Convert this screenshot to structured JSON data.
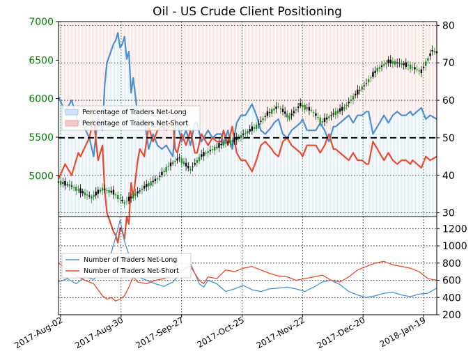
{
  "chart_data": [
    {
      "type": "candlestick+line",
      "title": "Oil - US Crude Client Positioning",
      "x_ticks": [
        "2017-Aug-02",
        "2017-Aug-30",
        "2017-Sep-27",
        "2017-Oct-25",
        "2017-Nov-22",
        "2017-Dec-20",
        "2018-Jan-19"
      ],
      "left_axis": {
        "ticks": [
          5000,
          5500,
          6000,
          6500,
          7000
        ],
        "ylim": [
          4470,
          7000
        ],
        "color": "#008000"
      },
      "right_axis": {
        "ticks": [
          30,
          40,
          50,
          60,
          70,
          80
        ],
        "ylim": [
          29,
          81
        ],
        "color": "#000000"
      },
      "reference_line": {
        "value": 50,
        "axis": "right",
        "style": "dashed"
      },
      "legend": {
        "placement": "left",
        "entries": [
          "Percentage of Traders Net-Long",
          "Percentage of Traders Net-Short"
        ]
      },
      "grid": true,
      "series": [
        {
          "name": "Percentage of Traders Net-Long",
          "axis": "right",
          "color": "#4a90d0",
          "x": [
            0,
            3,
            6,
            9,
            10,
            14,
            16,
            18,
            20,
            21,
            22,
            25,
            26,
            27,
            28,
            29,
            30,
            31,
            32,
            33,
            34,
            36,
            37,
            39,
            41,
            43,
            45,
            47,
            49,
            52,
            53,
            54,
            56,
            58,
            60,
            62,
            63,
            65,
            68,
            70,
            72,
            74,
            75,
            77,
            79,
            81,
            83,
            85,
            87,
            88,
            90,
            92,
            94,
            97,
            98,
            100,
            102,
            104,
            106,
            108,
            110,
            111,
            113,
            115,
            117,
            119,
            121,
            123,
            125,
            126,
            128,
            130,
            132,
            134,
            136,
            138,
            140,
            141,
            143,
            146,
            148,
            150,
            152,
            154,
            156,
            158,
            160,
            161,
            163,
            165,
            167,
            169,
            172
          ],
          "values": [
            61,
            57,
            60,
            54,
            55,
            50,
            45,
            56,
            52,
            64,
            70,
            75,
            76,
            78,
            74,
            75,
            77,
            71,
            73,
            62,
            66,
            56,
            53,
            55,
            47,
            51,
            48,
            47,
            48,
            45,
            53,
            54,
            49,
            52,
            48,
            54,
            54,
            49,
            52,
            50,
            51,
            51,
            48,
            52,
            47,
            54,
            56,
            56,
            58,
            59,
            56,
            52,
            51,
            53,
            54,
            55,
            51,
            50,
            52,
            53,
            54,
            55,
            52,
            52,
            52,
            54,
            52,
            49,
            53,
            53,
            54,
            55,
            56,
            54,
            56,
            56,
            57,
            57,
            51,
            54,
            56,
            54,
            56,
            57,
            56,
            56,
            57,
            56,
            57,
            58,
            55,
            56,
            55
          ]
        },
        {
          "name": "Percentage of Traders Net-Short",
          "axis": "right",
          "color": "#e84a2f",
          "x": [
            0,
            3,
            6,
            9,
            10,
            14,
            16,
            18,
            20,
            21,
            22,
            25,
            26,
            27,
            28,
            29,
            30,
            31,
            32,
            33,
            34,
            36,
            37,
            39,
            41,
            43,
            45,
            47,
            49,
            52,
            53,
            54,
            56,
            58,
            60,
            62,
            63,
            65,
            68,
            70,
            72,
            74,
            75,
            77,
            79,
            81,
            83,
            85,
            87,
            88,
            90,
            92,
            94,
            97,
            98,
            100,
            102,
            104,
            106,
            108,
            110,
            111,
            113,
            115,
            117,
            119,
            121,
            123,
            125,
            126,
            128,
            130,
            132,
            134,
            136,
            138,
            140,
            141,
            143,
            146,
            148,
            150,
            152,
            154,
            156,
            158,
            160,
            161,
            163,
            165,
            167,
            169,
            172
          ],
          "values": [
            39,
            43,
            40,
            46,
            45,
            50,
            55,
            44,
            48,
            36,
            30,
            25,
            24,
            22,
            26,
            25,
            23,
            29,
            27,
            38,
            34,
            44,
            47,
            45,
            53,
            49,
            52,
            53,
            52,
            55,
            47,
            46,
            51,
            48,
            52,
            46,
            46,
            51,
            48,
            50,
            49,
            49,
            52,
            48,
            53,
            46,
            44,
            44,
            42,
            41,
            44,
            48,
            49,
            47,
            46,
            45,
            49,
            50,
            48,
            47,
            46,
            45,
            48,
            48,
            48,
            46,
            48,
            51,
            47,
            47,
            46,
            45,
            44,
            46,
            44,
            44,
            43,
            43,
            49,
            46,
            44,
            46,
            44,
            43,
            44,
            44,
            43,
            44,
            43,
            42,
            45,
            44,
            45
          ]
        },
        {
          "name": "US Crude Price (candlesticks)",
          "axis": "left",
          "color": "#000000",
          "x": [
            0,
            5,
            10,
            15,
            20,
            25,
            30,
            35,
            40,
            45,
            50,
            55,
            60,
            65,
            70,
            75,
            80,
            85,
            90,
            95,
            100,
            105,
            110,
            115,
            120,
            125,
            130,
            135,
            140,
            145,
            150,
            155,
            160,
            165,
            170,
            172
          ],
          "values": [
            4920,
            4880,
            4800,
            4720,
            4830,
            4780,
            4650,
            4760,
            4870,
            4960,
            5120,
            5230,
            5080,
            5260,
            5340,
            5420,
            5460,
            5550,
            5640,
            5800,
            5900,
            5760,
            5920,
            5850,
            5700,
            5800,
            5880,
            6050,
            6200,
            6380,
            6480,
            6460,
            6420,
            6350,
            6620,
            6600
          ]
        }
      ]
    },
    {
      "type": "line",
      "left_axis": {
        "ticks": [],
        "ylim": [
          250,
          1340
        ]
      },
      "right_axis": {
        "ticks": [
          200,
          400,
          600,
          800,
          1000,
          1200
        ],
        "ylim": [
          200,
          1340
        ]
      },
      "legend": {
        "placement": "left",
        "entries": [
          "Number of Traders Net-Long",
          "Number of Traders Net-Short"
        ]
      },
      "grid": true,
      "series": [
        {
          "name": "Number of Traders Net-Long",
          "color": "#4a90d0",
          "x": [
            0,
            4,
            8,
            12,
            16,
            20,
            22,
            24,
            26,
            28,
            30,
            32,
            34,
            36,
            40,
            44,
            48,
            52,
            56,
            60,
            64,
            66,
            68,
            72,
            76,
            80,
            84,
            88,
            92,
            96,
            100,
            104,
            108,
            112,
            116,
            120,
            124,
            128,
            132,
            136,
            140,
            144,
            148,
            152,
            156,
            160,
            164,
            168,
            172
          ],
          "values": [
            580,
            620,
            560,
            640,
            610,
            700,
            850,
            920,
            1100,
            1300,
            1050,
            900,
            720,
            640,
            600,
            560,
            530,
            580,
            700,
            800,
            560,
            520,
            600,
            560,
            470,
            500,
            540,
            490,
            470,
            500,
            510,
            520,
            500,
            470,
            520,
            580,
            600,
            550,
            470,
            430,
            400,
            420,
            450,
            460,
            430,
            410,
            440,
            450,
            510
          ]
        },
        {
          "name": "Number of Traders Net-Short",
          "color": "#e84a2f",
          "x": [
            0,
            4,
            8,
            12,
            16,
            20,
            22,
            24,
            26,
            28,
            30,
            32,
            34,
            36,
            40,
            44,
            48,
            52,
            56,
            60,
            64,
            66,
            68,
            72,
            76,
            80,
            84,
            88,
            92,
            96,
            100,
            104,
            108,
            112,
            116,
            120,
            124,
            128,
            132,
            136,
            140,
            144,
            148,
            152,
            156,
            160,
            164,
            168,
            172
          ],
          "values": [
            800,
            720,
            650,
            600,
            560,
            420,
            380,
            400,
            360,
            380,
            420,
            520,
            640,
            580,
            560,
            600,
            620,
            660,
            720,
            760,
            600,
            560,
            640,
            620,
            720,
            700,
            740,
            760,
            720,
            680,
            650,
            640,
            600,
            620,
            640,
            660,
            600,
            580,
            640,
            720,
            760,
            800,
            820,
            780,
            760,
            740,
            700,
            620,
            600
          ]
        }
      ]
    }
  ]
}
